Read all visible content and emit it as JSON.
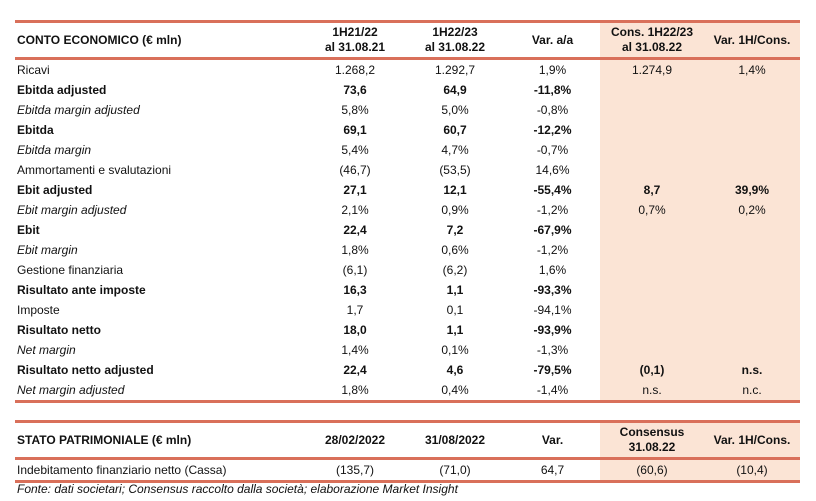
{
  "income": {
    "headers": [
      "CONTO ECONOMICO (€ mln)",
      "1H21/22\nal 31.08.21",
      "1H22/23\nal 31.08.22",
      "Var. a/a",
      "Cons. 1H22/23\nal 31.08.22",
      "Var. 1H/Cons."
    ],
    "rows": [
      {
        "label": "Ricavi",
        "style": "n",
        "v": [
          "1.268,2",
          "1.292,7",
          "1,9%",
          "1.274,9",
          "1,4%"
        ]
      },
      {
        "label": "Ebitda adjusted",
        "style": "b",
        "v": [
          "73,6",
          "64,9",
          "-11,8%",
          "",
          ""
        ]
      },
      {
        "label": "Ebitda margin adjusted",
        "style": "i",
        "v": [
          "5,8%",
          "5,0%",
          "-0,8%",
          "",
          ""
        ]
      },
      {
        "label": "Ebitda",
        "style": "b",
        "v": [
          "69,1",
          "60,7",
          "-12,2%",
          "",
          ""
        ]
      },
      {
        "label": "Ebitda margin",
        "style": "i",
        "v": [
          "5,4%",
          "4,7%",
          "-0,7%",
          "",
          ""
        ]
      },
      {
        "label": "Ammortamenti e svalutazioni",
        "style": "n",
        "v": [
          "(46,7)",
          "(53,5)",
          "14,6%",
          "",
          ""
        ]
      },
      {
        "label": "Ebit adjusted",
        "style": "b",
        "v": [
          "27,1",
          "12,1",
          "-55,4%",
          "8,7",
          "39,9%"
        ]
      },
      {
        "label": "Ebit margin adjusted",
        "style": "i",
        "v": [
          "2,1%",
          "0,9%",
          "-1,2%",
          "0,7%",
          "0,2%"
        ]
      },
      {
        "label": "Ebit",
        "style": "b",
        "v": [
          "22,4",
          "7,2",
          "-67,9%",
          "",
          ""
        ]
      },
      {
        "label": "Ebit margin",
        "style": "i",
        "v": [
          "1,8%",
          "0,6%",
          "-1,2%",
          "",
          ""
        ]
      },
      {
        "label": "Gestione finanziaria",
        "style": "n",
        "v": [
          "(6,1)",
          "(6,2)",
          "1,6%",
          "",
          ""
        ]
      },
      {
        "label": "Risultato ante imposte",
        "style": "b",
        "v": [
          "16,3",
          "1,1",
          "-93,3%",
          "",
          ""
        ]
      },
      {
        "label": "Imposte",
        "style": "n",
        "v": [
          "1,7",
          "0,1",
          "-94,1%",
          "",
          ""
        ]
      },
      {
        "label": "Risultato netto",
        "style": "b",
        "v": [
          "18,0",
          "1,1",
          "-93,9%",
          "",
          ""
        ]
      },
      {
        "label": "Net margin",
        "style": "i",
        "v": [
          "1,4%",
          "0,1%",
          "-1,3%",
          "",
          ""
        ]
      },
      {
        "label": "Risultato netto adjusted",
        "style": "b",
        "v": [
          "22,4",
          "4,6",
          "-79,5%",
          "(0,1)",
          "n.s."
        ]
      },
      {
        "label": "Net margin adjusted",
        "style": "i",
        "v": [
          "1,8%",
          "0,4%",
          "-1,4%",
          "n.s.",
          "n.c."
        ]
      }
    ]
  },
  "balance": {
    "headers": [
      "STATO PATRIMONIALE (€ mln)",
      "28/02/2022",
      "31/08/2022",
      "Var.",
      "Consensus\n31.08.22",
      "Var. 1H/Cons."
    ],
    "rows": [
      {
        "label": "Indebitamento finanziario netto (Cassa)",
        "style": "n",
        "v": [
          "(135,7)",
          "(71,0)",
          "64,7",
          "(60,6)",
          "(10,4)"
        ]
      }
    ]
  },
  "footnote": "Fonte: dati societari; Consensus raccolto dalla società; elaborazione Market Insight",
  "colors": {
    "border": "#d9705a",
    "shade": "#fbe4d5"
  }
}
